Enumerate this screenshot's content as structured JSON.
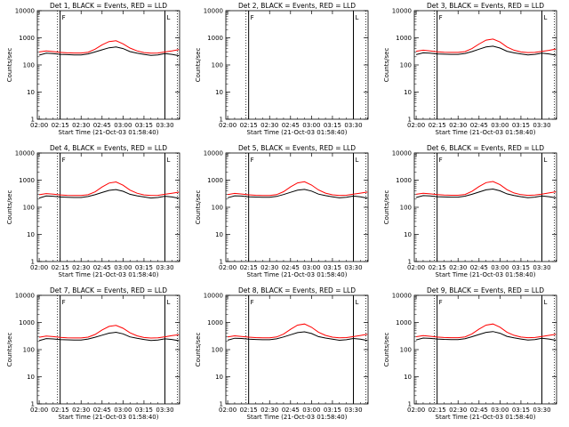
{
  "colors": {
    "events": "#000000",
    "lld": "#ff0000",
    "axes": "#000000",
    "background": "#ffffff"
  },
  "chart_data": [
    {
      "type": "line",
      "title": "Det 1, BLACK = Events, RED = LLD",
      "xlabel": "Start Time (21-Oct-03 01:58:40)",
      "ylabel": "Counts/sec",
      "y_scale": "log",
      "ylim": [
        1,
        10000
      ],
      "x_ticks": [
        "02:00",
        "02:15",
        "02:30",
        "02:45",
        "03:00",
        "03:15",
        "03:30"
      ],
      "y_ticks": [
        "1",
        "10",
        "100",
        "1000",
        "10000"
      ],
      "x_minutes": [
        0,
        5,
        10,
        15,
        20,
        25,
        30,
        35,
        40,
        45,
        50,
        55,
        60,
        65,
        70,
        75,
        80,
        85,
        90,
        95,
        100
      ],
      "markers": [
        {
          "x_minute": 15,
          "label": "F"
        },
        {
          "x_minute": 90,
          "label": "L"
        }
      ],
      "series": [
        {
          "name": "Events",
          "values": [
            230,
            270,
            260,
            245,
            240,
            235,
            235,
            255,
            300,
            360,
            430,
            460,
            400,
            310,
            270,
            245,
            225,
            235,
            260,
            245,
            220
          ]
        },
        {
          "name": "LLD",
          "values": [
            300,
            330,
            310,
            290,
            280,
            275,
            275,
            295,
            380,
            550,
            730,
            780,
            600,
            420,
            330,
            285,
            270,
            275,
            300,
            330,
            370
          ]
        }
      ]
    },
    {
      "type": "line",
      "title": "Det 2, BLACK = Events, RED = LLD",
      "xlabel": "Start Time (21-Oct-03 01:58:40)",
      "ylabel": "Counts/sec",
      "y_scale": "log",
      "ylim": [
        1,
        10000
      ],
      "x_ticks": [
        "02:00",
        "02:15",
        "02:30",
        "02:45",
        "03:00",
        "03:15",
        "03:30"
      ],
      "y_ticks": [
        "1",
        "10",
        "100",
        "1000",
        "10000"
      ],
      "x_minutes": [],
      "markers": [
        {
          "x_minute": 15,
          "label": "F"
        },
        {
          "x_minute": 90,
          "label": "L"
        }
      ],
      "series": []
    },
    {
      "type": "line",
      "title": "Det 3, BLACK = Events, RED = LLD",
      "xlabel": "Start Time (21-Oct-03 01:58:40)",
      "ylabel": "Counts/sec",
      "y_scale": "log",
      "ylim": [
        1,
        10000
      ],
      "x_ticks": [
        "02:00",
        "02:15",
        "02:30",
        "02:45",
        "03:00",
        "03:15",
        "03:30"
      ],
      "y_ticks": [
        "1",
        "10",
        "100",
        "1000",
        "10000"
      ],
      "x_minutes": [
        0,
        5,
        10,
        15,
        20,
        25,
        30,
        35,
        40,
        45,
        50,
        55,
        60,
        65,
        70,
        75,
        80,
        85,
        90,
        95,
        100
      ],
      "markers": [
        {
          "x_minute": 15,
          "label": "F"
        },
        {
          "x_minute": 90,
          "label": "L"
        }
      ],
      "series": [
        {
          "name": "Events",
          "values": [
            240,
            280,
            270,
            255,
            250,
            245,
            245,
            265,
            310,
            380,
            460,
            490,
            420,
            320,
            280,
            255,
            235,
            245,
            270,
            255,
            230
          ]
        },
        {
          "name": "LLD",
          "values": [
            320,
            350,
            330,
            305,
            295,
            290,
            290,
            310,
            400,
            590,
            820,
            900,
            700,
            460,
            350,
            300,
            285,
            290,
            315,
            345,
            385
          ]
        }
      ]
    },
    {
      "type": "line",
      "title": "Det 4, BLACK = Events, RED = LLD",
      "xlabel": "Start Time (21-Oct-03 01:58:40)",
      "ylabel": "Counts/sec",
      "y_scale": "log",
      "ylim": [
        1,
        10000
      ],
      "x_ticks": [
        "02:00",
        "02:15",
        "02:30",
        "02:45",
        "03:00",
        "03:15",
        "03:30"
      ],
      "y_ticks": [
        "1",
        "10",
        "100",
        "1000",
        "10000"
      ],
      "x_minutes": [
        0,
        5,
        10,
        15,
        20,
        25,
        30,
        35,
        40,
        45,
        50,
        55,
        60,
        65,
        70,
        75,
        80,
        85,
        90,
        95,
        100
      ],
      "markers": [
        {
          "x_minute": 15,
          "label": "F"
        },
        {
          "x_minute": 90,
          "label": "L"
        }
      ],
      "series": [
        {
          "name": "Events",
          "values": [
            220,
            260,
            255,
            240,
            235,
            230,
            230,
            250,
            290,
            350,
            420,
            450,
            390,
            300,
            265,
            240,
            220,
            230,
            255,
            240,
            215
          ]
        },
        {
          "name": "LLD",
          "values": [
            290,
            320,
            305,
            285,
            275,
            270,
            270,
            290,
            370,
            560,
            780,
            860,
            650,
            430,
            330,
            285,
            270,
            275,
            300,
            330,
            360
          ]
        }
      ]
    },
    {
      "type": "line",
      "title": "Det 5, BLACK = Events, RED = LLD",
      "xlabel": "Start Time (21-Oct-03 01:58:40)",
      "ylabel": "Counts/sec",
      "y_scale": "log",
      "ylim": [
        1,
        10000
      ],
      "x_ticks": [
        "02:00",
        "02:15",
        "02:30",
        "02:45",
        "03:00",
        "03:15",
        "03:30"
      ],
      "y_ticks": [
        "1",
        "10",
        "100",
        "1000",
        "10000"
      ],
      "x_minutes": [
        0,
        5,
        10,
        15,
        20,
        25,
        30,
        35,
        40,
        45,
        50,
        55,
        60,
        65,
        70,
        75,
        80,
        85,
        90,
        95,
        100
      ],
      "markers": [
        {
          "x_minute": 15,
          "label": "F"
        },
        {
          "x_minute": 90,
          "label": "L"
        }
      ],
      "series": [
        {
          "name": "Events",
          "values": [
            225,
            265,
            258,
            243,
            238,
            233,
            233,
            252,
            295,
            355,
            425,
            455,
            395,
            305,
            268,
            243,
            223,
            233,
            258,
            243,
            218
          ]
        },
        {
          "name": "LLD",
          "values": [
            295,
            325,
            308,
            288,
            278,
            273,
            273,
            293,
            375,
            565,
            790,
            870,
            660,
            435,
            332,
            287,
            272,
            277,
            303,
            332,
            365
          ]
        }
      ]
    },
    {
      "type": "line",
      "title": "Det 6, BLACK = Events, RED = LLD",
      "xlabel": "Start Time (21-Oct-03 01:58:40)",
      "ylabel": "Counts/sec",
      "y_scale": "log",
      "ylim": [
        1,
        10000
      ],
      "x_ticks": [
        "02:00",
        "02:15",
        "02:30",
        "02:45",
        "03:00",
        "03:15",
        "03:30"
      ],
      "y_ticks": [
        "1",
        "10",
        "100",
        "1000",
        "10000"
      ],
      "x_minutes": [
        0,
        5,
        10,
        15,
        20,
        25,
        30,
        35,
        40,
        45,
        50,
        55,
        60,
        65,
        70,
        75,
        80,
        85,
        90,
        95,
        100
      ],
      "markers": [
        {
          "x_minute": 15,
          "label": "F"
        },
        {
          "x_minute": 90,
          "label": "L"
        }
      ],
      "series": [
        {
          "name": "Events",
          "values": [
            230,
            268,
            260,
            246,
            240,
            236,
            236,
            256,
            300,
            365,
            440,
            470,
            405,
            312,
            272,
            246,
            226,
            236,
            262,
            246,
            222
          ]
        },
        {
          "name": "LLD",
          "values": [
            300,
            330,
            312,
            292,
            282,
            277,
            277,
            297,
            385,
            580,
            810,
            890,
            680,
            445,
            338,
            292,
            276,
            281,
            306,
            336,
            372
          ]
        }
      ]
    },
    {
      "type": "line",
      "title": "Det 7, BLACK = Events, RED = LLD",
      "xlabel": "Start Time (21-Oct-03 01:58:40)",
      "ylabel": "Counts/sec",
      "y_scale": "log",
      "ylim": [
        1,
        10000
      ],
      "x_ticks": [
        "02:00",
        "02:15",
        "02:30",
        "02:45",
        "03:00",
        "03:15",
        "03:30"
      ],
      "y_ticks": [
        "1",
        "10",
        "100",
        "1000",
        "10000"
      ],
      "x_minutes": [
        0,
        5,
        10,
        15,
        20,
        25,
        30,
        35,
        40,
        45,
        50,
        55,
        60,
        65,
        70,
        75,
        80,
        85,
        90,
        95,
        100
      ],
      "markers": [
        {
          "x_minute": 15,
          "label": "F"
        },
        {
          "x_minute": 90,
          "label": "L"
        }
      ],
      "series": [
        {
          "name": "Events",
          "values": [
            215,
            255,
            248,
            235,
            230,
            226,
            226,
            245,
            285,
            340,
            405,
            435,
            380,
            295,
            260,
            236,
            216,
            226,
            250,
            236,
            212
          ]
        },
        {
          "name": "LLD",
          "values": [
            285,
            315,
            300,
            282,
            272,
            268,
            268,
            288,
            360,
            530,
            720,
            780,
            610,
            415,
            322,
            280,
            266,
            270,
            296,
            326,
            355
          ]
        }
      ]
    },
    {
      "type": "line",
      "title": "Det 8, BLACK = Events, RED = LLD",
      "xlabel": "Start Time (21-Oct-03 01:58:40)",
      "ylabel": "Counts/sec",
      "y_scale": "log",
      "ylim": [
        1,
        10000
      ],
      "x_ticks": [
        "02:00",
        "02:15",
        "02:30",
        "02:45",
        "03:00",
        "03:15",
        "03:30"
      ],
      "y_ticks": [
        "1",
        "10",
        "100",
        "1000",
        "10000"
      ],
      "x_minutes": [
        0,
        5,
        10,
        15,
        20,
        25,
        30,
        35,
        40,
        45,
        50,
        55,
        60,
        65,
        70,
        75,
        80,
        85,
        90,
        95,
        100
      ],
      "markers": [
        {
          "x_minute": 15,
          "label": "F"
        },
        {
          "x_minute": 90,
          "label": "L"
        }
      ],
      "series": [
        {
          "name": "Events",
          "values": [
            222,
            262,
            256,
            242,
            236,
            232,
            232,
            250,
            292,
            352,
            424,
            454,
            392,
            302,
            266,
            241,
            221,
            231,
            256,
            241,
            217
          ]
        },
        {
          "name": "LLD",
          "values": [
            292,
            322,
            306,
            287,
            277,
            272,
            272,
            292,
            372,
            560,
            800,
            880,
            665,
            438,
            334,
            288,
            273,
            278,
            302,
            332,
            366
          ]
        }
      ]
    },
    {
      "type": "line",
      "title": "Det 9, BLACK = Events, RED = LLD",
      "xlabel": "Start Time (21-Oct-03 01:58:40)",
      "ylabel": "Counts/sec",
      "y_scale": "log",
      "ylim": [
        1,
        10000
      ],
      "x_ticks": [
        "02:00",
        "02:15",
        "02:30",
        "02:45",
        "03:00",
        "03:15",
        "03:30"
      ],
      "y_ticks": [
        "1",
        "10",
        "100",
        "1000",
        "10000"
      ],
      "x_minutes": [
        0,
        5,
        10,
        15,
        20,
        25,
        30,
        35,
        40,
        45,
        50,
        55,
        60,
        65,
        70,
        75,
        80,
        85,
        90,
        95,
        100
      ],
      "markers": [
        {
          "x_minute": 15,
          "label": "F"
        },
        {
          "x_minute": 90,
          "label": "L"
        }
      ],
      "series": [
        {
          "name": "Events",
          "values": [
            228,
            266,
            259,
            245,
            239,
            235,
            235,
            254,
            298,
            360,
            434,
            464,
            400,
            308,
            270,
            245,
            225,
            235,
            260,
            245,
            221
          ]
        },
        {
          "name": "LLD",
          "values": [
            298,
            328,
            310,
            290,
            280,
            275,
            275,
            295,
            380,
            570,
            800,
            880,
            670,
            440,
            336,
            290,
            275,
            280,
            305,
            335,
            370
          ]
        }
      ]
    }
  ]
}
